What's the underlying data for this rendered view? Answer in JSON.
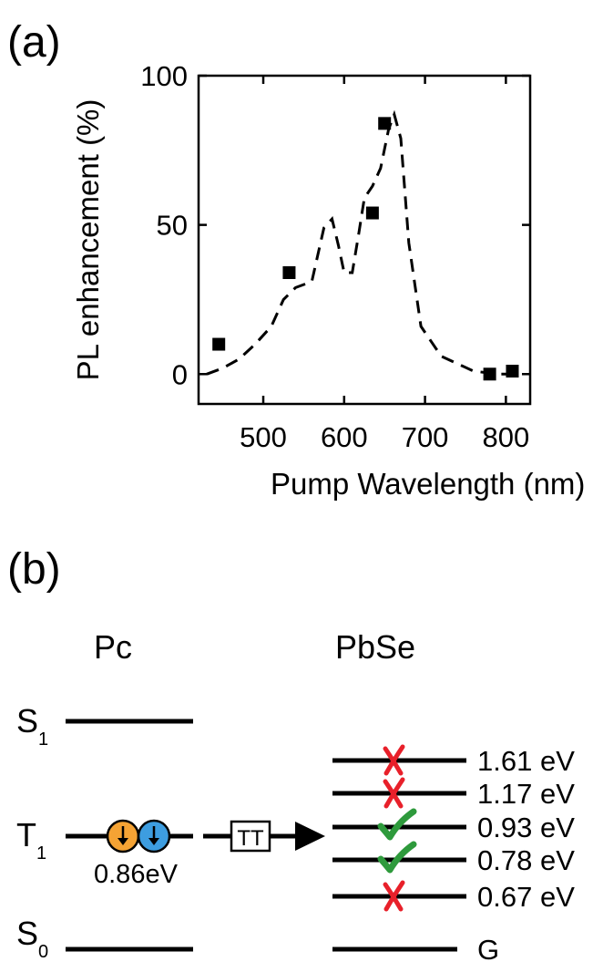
{
  "panel_a": {
    "label": "(a)",
    "chart_data": {
      "type": "scatter",
      "xlabel": "Pump Wavelength (nm)",
      "ylabel": "PL enhancement (%)",
      "xlim": [
        420,
        830
      ],
      "ylim": [
        -10,
        100
      ],
      "xticks": [
        "500",
        "600",
        "700",
        "800"
      ],
      "xtick_values": [
        500,
        600,
        700,
        800
      ],
      "yticks": [
        "0",
        "50",
        "100"
      ],
      "ytick_values": [
        0,
        50,
        100
      ],
      "grid": false,
      "series": [
        {
          "style": "markers",
          "x": [
            445,
            532,
            635,
            650,
            780,
            808
          ],
          "y": [
            10,
            34,
            54,
            84,
            0,
            1
          ]
        },
        {
          "style": "dashed-line",
          "x": [
            430,
            450,
            470,
            490,
            510,
            525,
            540,
            560,
            575,
            585,
            593,
            600,
            610,
            618,
            625,
            635,
            645,
            655,
            662,
            670,
            680,
            695,
            720,
            760,
            790,
            810
          ],
          "y": [
            0,
            2,
            5,
            10,
            16,
            25,
            29,
            31,
            49,
            52,
            43,
            34,
            34,
            47,
            59,
            63,
            69,
            82,
            87,
            79,
            44,
            16,
            6,
            1,
            0,
            0
          ]
        }
      ]
    }
  },
  "panel_b": {
    "label": "(b)",
    "left_title": "Pc",
    "right_title": "PbSe",
    "left_levels": [
      {
        "name": "S",
        "sub": "1"
      },
      {
        "name": "T",
        "sub": "1"
      },
      {
        "name": "S",
        "sub": "0"
      }
    ],
    "t1_energy": "0.86eV",
    "transfer_label": "TT",
    "right_levels": [
      {
        "label": "1.61 eV",
        "mark": "cross"
      },
      {
        "label": "1.17 eV",
        "mark": "cross"
      },
      {
        "label": "0.93 eV",
        "mark": "check"
      },
      {
        "label": "0.78 eV",
        "mark": "check"
      },
      {
        "label": "0.67 eV",
        "mark": "cross"
      },
      {
        "label": "G",
        "mark": "none"
      }
    ],
    "colors": {
      "cross": "#e8202a",
      "check": "#2e9a3c",
      "spin_up": "#f5a334",
      "spin_down": "#3d9de0"
    }
  }
}
